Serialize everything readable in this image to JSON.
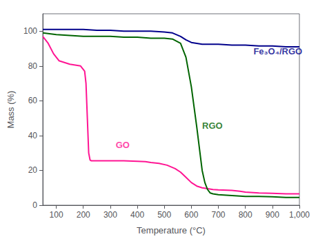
{
  "chart_data": {
    "type": "line",
    "xlabel": "Temperature (°C)",
    "ylabel": "Mass (%)",
    "xlim": [
      50,
      1000
    ],
    "ylim": [
      0,
      110
    ],
    "xticks": [
      100,
      200,
      300,
      400,
      500,
      600,
      700,
      800,
      900,
      1000
    ],
    "yticks": [
      0,
      20,
      40,
      60,
      80,
      100
    ],
    "grid": false,
    "series": [
      {
        "color": "#FF1493",
        "x": [
          50,
          70,
          90,
          110,
          150,
          190,
          205,
          210,
          215,
          220,
          225,
          230,
          250,
          300,
          350,
          400,
          430,
          450,
          480,
          510,
          540,
          560,
          580,
          600,
          620,
          640,
          660,
          680,
          700,
          750,
          780,
          800,
          850,
          900,
          950,
          1000
        ],
        "values": [
          97,
          93,
          87,
          83,
          81,
          80,
          77,
          70,
          50,
          30,
          26,
          25.5,
          25.5,
          25.5,
          25.5,
          25.2,
          25,
          24.5,
          24,
          23,
          21,
          19,
          16,
          13,
          11,
          10,
          9.5,
          9,
          8.8,
          8.5,
          8,
          7.5,
          7,
          6.8,
          6.5,
          6.5
        ]
      },
      {
        "color": "#006400",
        "x": [
          50,
          100,
          150,
          200,
          250,
          300,
          350,
          400,
          450,
          500,
          530,
          560,
          580,
          600,
          620,
          640,
          650,
          660,
          670,
          680,
          700,
          750,
          800,
          850,
          900,
          950,
          1000
        ],
        "values": [
          99,
          98,
          97.5,
          97,
          97,
          97,
          96.5,
          96.5,
          96,
          96,
          95.5,
          93,
          85,
          68,
          45,
          20,
          13,
          9,
          7,
          6.5,
          6,
          5.5,
          5,
          5,
          4.8,
          4.5,
          4.5
        ]
      },
      {
        "color": "#00008B",
        "x": [
          50,
          100,
          150,
          200,
          250,
          300,
          350,
          400,
          450,
          500,
          530,
          560,
          580,
          600,
          620,
          640,
          660,
          700,
          750,
          800,
          850,
          900,
          950,
          1000
        ],
        "values": [
          101,
          101,
          101,
          101,
          100.5,
          100.5,
          100,
          100,
          100,
          99.5,
          99,
          97,
          95,
          93.5,
          93,
          92.5,
          92.5,
          92.5,
          92,
          92,
          91.5,
          91.5,
          91,
          91
        ]
      }
    ],
    "annotations": [
      {
        "text": "GO",
        "x": 320,
        "y": 32,
        "color": "#FF1493"
      },
      {
        "text": "RGO",
        "x": 640,
        "y": 43,
        "color": "#006400"
      },
      {
        "text": "Fe₃O₄/RGO",
        "x": 830,
        "y": 86,
        "color": "#00008B"
      }
    ]
  }
}
